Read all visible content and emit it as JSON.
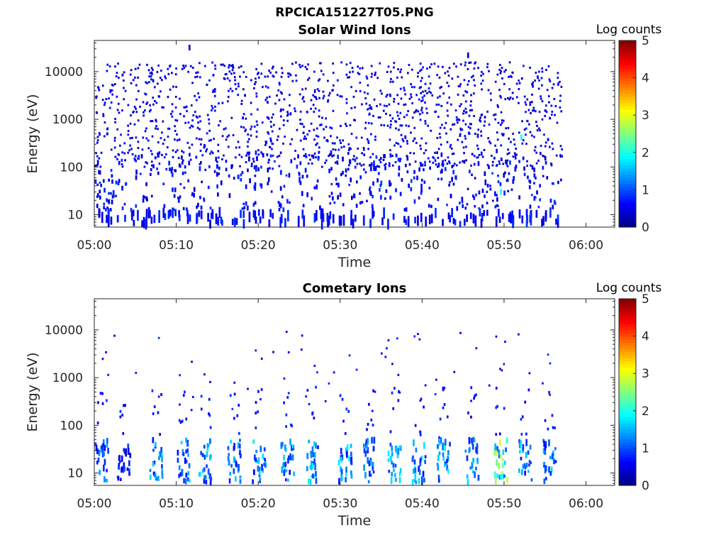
{
  "figure": {
    "title": "RPCICA151227T05.PNG"
  },
  "chart_data": [
    {
      "type": "heatmap",
      "title": "Solar Wind Ions",
      "xlabel": "Time",
      "ylabel": "Energy (eV)",
      "x_ticks": [
        "05:00",
        "05:10",
        "05:20",
        "05:30",
        "05:40",
        "05:50",
        "06:00"
      ],
      "x_range_minutes": [
        0,
        63.5
      ],
      "y_scale": "log",
      "y_ticks": [
        "10",
        "100",
        "1000",
        "10000"
      ],
      "y_tick_values": [
        10,
        100,
        1000,
        10000
      ],
      "y_range": [
        5.5,
        45000
      ],
      "colorbar": {
        "label": "Log counts",
        "ticks": [
          "0",
          "1",
          "2",
          "3",
          "4",
          "5"
        ],
        "range": [
          0,
          5
        ],
        "colormap": "jet"
      },
      "data_end_minute": 57,
      "description_points": [
        {
          "minute": 49.5,
          "energy": 30,
          "log_counts": 2.0
        },
        {
          "minute": 52.0,
          "energy": 420,
          "log_counts": 1.9
        },
        {
          "minute": 11.5,
          "energy": 32000,
          "log_counts": 0.5
        },
        {
          "minute": 45.5,
          "energy": 22000,
          "log_counts": 0.5
        }
      ]
    },
    {
      "type": "heatmap",
      "title": "Cometary Ions",
      "xlabel": "Time",
      "ylabel": "Energy (eV)",
      "x_ticks": [
        "05:00",
        "05:10",
        "05:20",
        "05:30",
        "05:40",
        "05:50",
        "06:00"
      ],
      "x_range_minutes": [
        0,
        63.5
      ],
      "y_scale": "log",
      "y_ticks": [
        "10",
        "100",
        "1000",
        "10000"
      ],
      "y_tick_values": [
        10,
        100,
        1000,
        10000
      ],
      "y_range": [
        5.5,
        45000
      ],
      "colorbar": {
        "label": "Log counts",
        "ticks": [
          "0",
          "1",
          "2",
          "3",
          "4",
          "5"
        ],
        "range": [
          0,
          5
        ],
        "colormap": "jet"
      },
      "bursts": [
        {
          "minute": 0.8,
          "peak_energy": 35,
          "peak_log_counts": 1.6
        },
        {
          "minute": 3.5,
          "peak_energy": 40,
          "peak_log_counts": 1.2
        },
        {
          "minute": 7.5,
          "peak_energy": 30,
          "peak_log_counts": 1.8
        },
        {
          "minute": 10.8,
          "peak_energy": 30,
          "peak_log_counts": 1.8
        },
        {
          "minute": 13.5,
          "peak_energy": 30,
          "peak_log_counts": 1.9
        },
        {
          "minute": 17.0,
          "peak_energy": 30,
          "peak_log_counts": 1.8
        },
        {
          "minute": 20.0,
          "peak_energy": 30,
          "peak_log_counts": 1.8
        },
        {
          "minute": 23.5,
          "peak_energy": 30,
          "peak_log_counts": 1.8
        },
        {
          "minute": 26.5,
          "peak_energy": 30,
          "peak_log_counts": 2.0
        },
        {
          "minute": 30.5,
          "peak_energy": 30,
          "peak_log_counts": 1.9
        },
        {
          "minute": 33.5,
          "peak_energy": 30,
          "peak_log_counts": 1.5
        },
        {
          "minute": 36.5,
          "peak_energy": 30,
          "peak_log_counts": 1.9
        },
        {
          "minute": 39.5,
          "peak_energy": 30,
          "peak_log_counts": 1.8
        },
        {
          "minute": 42.5,
          "peak_energy": 30,
          "peak_log_counts": 2.0
        },
        {
          "minute": 46.0,
          "peak_energy": 25,
          "peak_log_counts": 1.9
        },
        {
          "minute": 49.5,
          "peak_energy": 28,
          "peak_log_counts": 2.9
        },
        {
          "minute": 52.5,
          "peak_energy": 30,
          "peak_log_counts": 1.7
        },
        {
          "minute": 55.5,
          "peak_energy": 30,
          "peak_log_counts": 1.8
        }
      ]
    }
  ]
}
